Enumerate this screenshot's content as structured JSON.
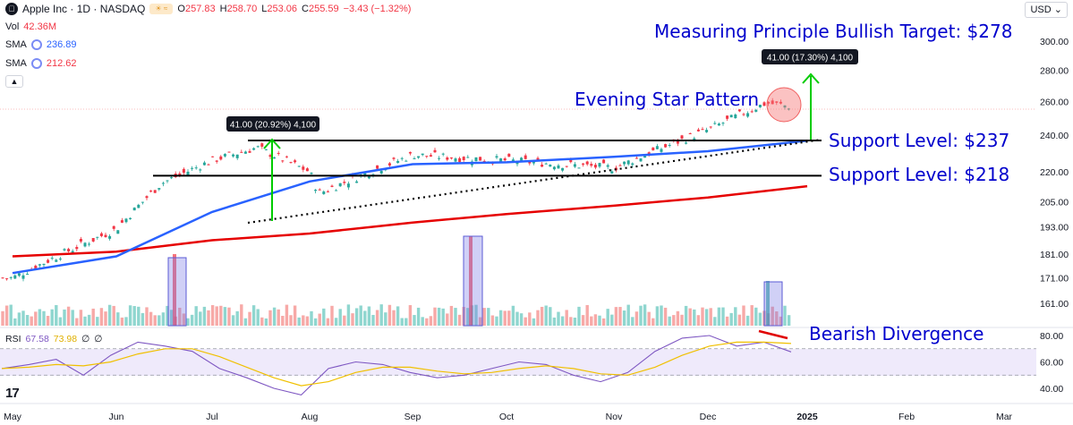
{
  "header": {
    "symbol": "Apple Inc · 1D · NASDAQ",
    "open_label": "O",
    "open": "257.83",
    "high_label": "H",
    "high": "258.70",
    "low_label": "L",
    "low": "253.06",
    "close_label": "C",
    "close": "255.59",
    "change": "−3.43 (−1.32%)",
    "vol_label": "Vol",
    "vol": "42.36M",
    "sma1_label": "SMA",
    "sma1": "236.89",
    "sma2_label": "SMA",
    "sma2": "212.62",
    "currency": "USD"
  },
  "rsi_header": {
    "label": "RSI",
    "v1": "67.58",
    "v2": "73.98",
    "v3": "∅",
    "v4": "∅"
  },
  "colors": {
    "up": "#26a69a",
    "down": "#f23645",
    "sma_fast": "#2962ff",
    "sma_slow": "#e60000",
    "annotation": "#0000cc",
    "arrow": "#00cc00",
    "rsi_line": "#7e57c2",
    "rsi_ma": "#f0c000"
  },
  "annotations": {
    "target": "Measuring Principle Bullish Target: $278",
    "evening_star": "Evening Star Pattern",
    "support_237": "Support Level: $237",
    "support_218": "Support Level: $218",
    "bearish_divergence": "Bearish Divergence",
    "label_left": "41.00 (20.92%) 4,100",
    "label_right": "41.00 (17.30%) 4,100"
  },
  "chart_data": [
    {
      "type": "candlestick",
      "title": "Apple Inc · 1D · NASDAQ",
      "price_axis_ticks": [
        "300.00",
        "280.00",
        "260.00",
        "240.00",
        "220.00",
        "205.00",
        "193.00",
        "181.00",
        "171.00",
        "161.00"
      ],
      "time_axis_ticks": [
        "May",
        "Jun",
        "Jul",
        "Aug",
        "Sep",
        "Oct",
        "Nov",
        "Dec",
        "2025",
        "Feb",
        "Mar"
      ],
      "scale": "log",
      "close_series": [
        {
          "x": "May",
          "y": 171
        },
        {
          "x": "Jun",
          "y": 192
        },
        {
          "x": "Jun (mid)",
          "y": 214
        },
        {
          "x": "Jul",
          "y": 226
        },
        {
          "x": "Jul (mid)",
          "y": 233
        },
        {
          "x": "Aug",
          "y": 220
        },
        {
          "x": "Aug (dip)",
          "y": 209
        },
        {
          "x": "Sep",
          "y": 229
        },
        {
          "x": "Oct",
          "y": 226
        },
        {
          "x": "Nov",
          "y": 222
        },
        {
          "x": "Dec",
          "y": 243
        },
        {
          "x": "Dec (late)",
          "y": 259
        },
        {
          "x": "2025",
          "y": 255.59
        }
      ],
      "sma_fast": [
        {
          "x": "May",
          "y": 173
        },
        {
          "x": "Jun",
          "y": 180
        },
        {
          "x": "Jul",
          "y": 200
        },
        {
          "x": "Aug",
          "y": 215
        },
        {
          "x": "Sep",
          "y": 224
        },
        {
          "x": "Oct",
          "y": 225
        },
        {
          "x": "Nov",
          "y": 228
        },
        {
          "x": "Dec",
          "y": 231
        },
        {
          "x": "2025",
          "y": 236.89
        }
      ],
      "sma_slow": [
        {
          "x": "May",
          "y": 180
        },
        {
          "x": "Jun",
          "y": 182
        },
        {
          "x": "Jul",
          "y": 187
        },
        {
          "x": "Aug",
          "y": 190
        },
        {
          "x": "Sep",
          "y": 195
        },
        {
          "x": "Oct",
          "y": 199
        },
        {
          "x": "Nov",
          "y": 203
        },
        {
          "x": "Dec",
          "y": 207
        },
        {
          "x": "2025",
          "y": 212.62
        }
      ],
      "horizontal_levels": [
        237,
        218
      ],
      "measured_target": 278
    },
    {
      "type": "line",
      "title": "RSI",
      "y_axis_ticks": [
        "80.00",
        "60.00",
        "40.00"
      ],
      "ylim": [
        30,
        85
      ],
      "series": [
        {
          "name": "RSI",
          "values": [
            55,
            58,
            62,
            50,
            65,
            75,
            72,
            68,
            55,
            48,
            40,
            35,
            55,
            60,
            58,
            52,
            48,
            50,
            55,
            60,
            58,
            50,
            45,
            52,
            68,
            78,
            80,
            72,
            75,
            67.58
          ]
        },
        {
          "name": "RSI MA",
          "values": [
            55,
            56,
            58,
            57,
            60,
            66,
            70,
            70,
            64,
            56,
            48,
            42,
            45,
            52,
            56,
            56,
            53,
            51,
            52,
            55,
            57,
            55,
            51,
            50,
            56,
            65,
            72,
            75,
            75,
            73.98
          ]
        }
      ]
    }
  ]
}
